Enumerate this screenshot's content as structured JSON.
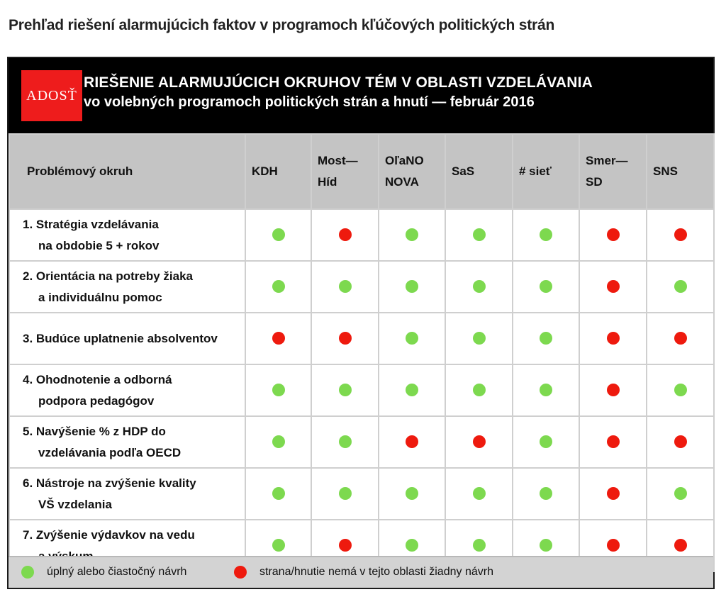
{
  "heading": "Prehľad riešení alarmujúcich faktov v programoch kľúčových politických strán",
  "banner": {
    "logo_text": "ADOSŤ",
    "title": "RIEŠENIE ALARMUJÚCICH OKRUHOV TÉM V OBLASTI VZDELÁVANIA",
    "subtitle": "vo volebných programoch politických strán a hnutí — február 2016"
  },
  "table": {
    "topic_header": "Problémový okruh",
    "parties": [
      {
        "line1": "KDH",
        "line2": ""
      },
      {
        "line1": "Most—",
        "line2": "Híd"
      },
      {
        "line1": "OľaNO",
        "line2": "NOVA"
      },
      {
        "line1": "SaS",
        "line2": ""
      },
      {
        "line1": "# sieť",
        "line2": ""
      },
      {
        "line1": "Smer—",
        "line2": "SD"
      },
      {
        "line1": "SNS",
        "line2": ""
      }
    ],
    "rows": [
      {
        "line1": "1. Stratégia vzdelávania",
        "line2": "na obdobie 5 + rokov",
        "status": [
          "green",
          "red",
          "green",
          "green",
          "green",
          "red",
          "red"
        ]
      },
      {
        "line1": "2. Orientácia na potreby žiaka",
        "line2": "a individuálnu pomoc",
        "status": [
          "green",
          "green",
          "green",
          "green",
          "green",
          "red",
          "green"
        ]
      },
      {
        "line1": "3. Budúce uplatnenie absolventov",
        "line2": "",
        "status": [
          "red",
          "red",
          "green",
          "green",
          "green",
          "red",
          "red"
        ]
      },
      {
        "line1": "4. Ohodnotenie a odborná",
        "line2": "podpora pedagógov",
        "status": [
          "green",
          "green",
          "green",
          "green",
          "green",
          "red",
          "green"
        ]
      },
      {
        "line1": "5. Navýšenie % z HDP do",
        "line2": "vzdelávania podľa OECD",
        "status": [
          "green",
          "green",
          "red",
          "red",
          "green",
          "red",
          "red"
        ]
      },
      {
        "line1": "6. Nástroje na zvýšenie kvality",
        "line2": "VŠ vzdelania",
        "status": [
          "green",
          "green",
          "green",
          "green",
          "green",
          "red",
          "green"
        ]
      },
      {
        "line1": "7. Zvýšenie výdavkov na vedu",
        "line2": "a výskum",
        "status": [
          "green",
          "red",
          "green",
          "green",
          "green",
          "red",
          "red"
        ]
      }
    ]
  },
  "legend": {
    "green_label": "úplný alebo čiastočný návrh",
    "red_label": "strana/hnutie nemá v tejto oblasti žiadny návrh"
  },
  "colors": {
    "green": "#7dd94f",
    "red": "#ee1a0e",
    "logo_red": "#ee1c1c",
    "banner": "#000000",
    "header_gray": "#c4c4c4"
  }
}
